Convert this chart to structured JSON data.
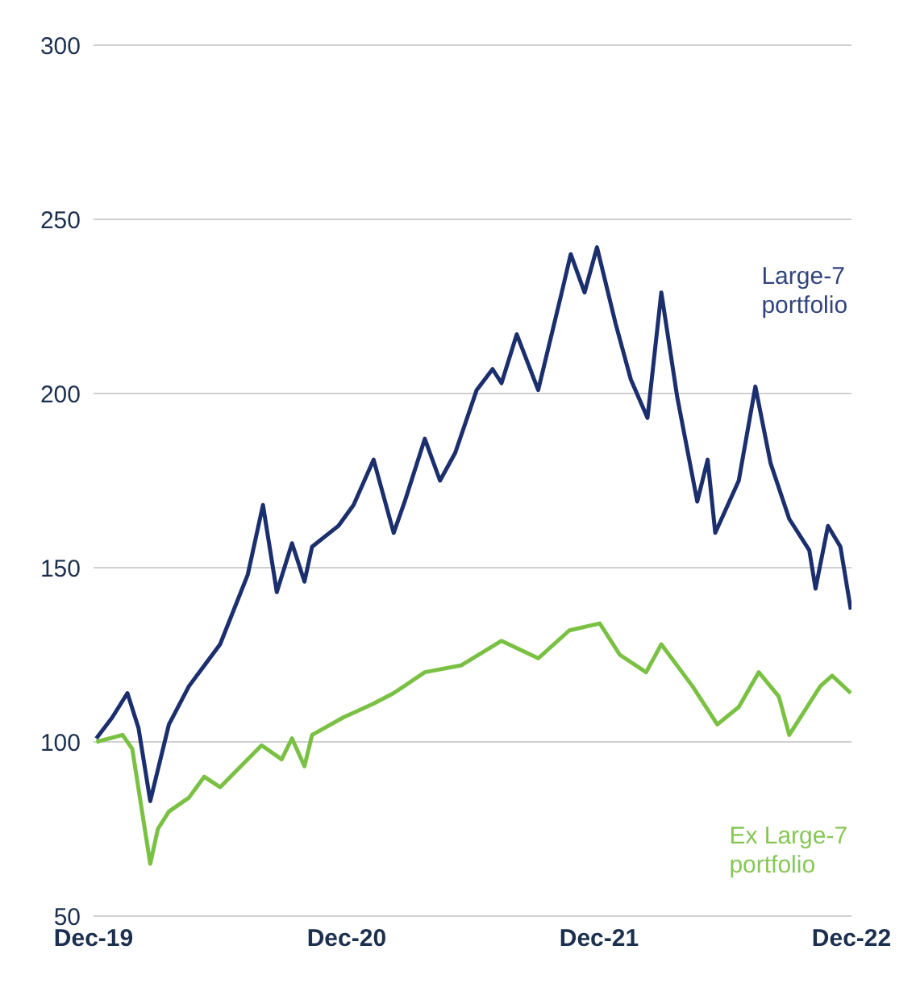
{
  "chart_data": {
    "type": "line",
    "xlim": [
      "2019-12-31",
      "2022-12-31"
    ],
    "xticks": [
      {
        "value": "2019-12-31",
        "label": "Dec-19"
      },
      {
        "value": "2020-12-31",
        "label": "Dec-20"
      },
      {
        "value": "2021-12-31",
        "label": "Dec-21"
      },
      {
        "value": "2022-12-31",
        "label": "Dec-22"
      }
    ],
    "ylim": [
      50,
      300
    ],
    "yticks": [
      50,
      100,
      150,
      200,
      250,
      300
    ],
    "grid": "y",
    "marker": "none",
    "line_style": "solid",
    "series": [
      {
        "name": "Large-7 portfolio",
        "color": "#1b2f6e",
        "x": [
          "2020-01-04",
          "2020-01-27",
          "2020-02-18",
          "2020-03-05",
          "2020-03-22",
          "2020-04-18",
          "2020-05-17",
          "2020-07-01",
          "2020-07-23",
          "2020-08-10",
          "2020-09-01",
          "2020-09-21",
          "2020-10-13",
          "2020-10-31",
          "2020-11-11",
          "2020-12-19",
          "2021-01-10",
          "2021-02-08",
          "2021-03-09",
          "2021-03-25",
          "2021-04-23",
          "2021-05-15",
          "2021-06-06",
          "2021-07-07",
          "2021-07-30",
          "2021-08-12",
          "2021-09-03",
          "2021-10-04",
          "2021-11-07",
          "2021-11-20",
          "2021-12-10",
          "2021-12-28",
          "2022-01-24",
          "2022-02-15",
          "2022-03-11",
          "2022-03-31",
          "2022-04-23",
          "2022-05-22",
          "2022-06-06",
          "2022-06-17",
          "2022-07-21",
          "2022-08-14",
          "2022-09-05",
          "2022-10-02",
          "2022-10-31",
          "2022-11-09",
          "2022-11-27",
          "2022-12-15",
          "2022-12-30"
        ],
        "values": [
          101,
          107,
          114,
          104,
          83,
          105,
          116,
          128,
          139,
          148,
          168,
          143,
          157,
          146,
          156,
          162,
          168,
          181,
          160,
          169,
          187,
          175,
          183,
          201,
          207,
          203,
          217,
          201,
          229,
          240,
          229,
          242,
          220,
          204,
          193,
          229,
          199,
          169,
          181,
          160,
          175,
          202,
          180,
          164,
          155,
          144,
          162,
          156,
          138
        ]
      },
      {
        "name": "Ex Large-7 portfolio",
        "color": "#7ac143",
        "x": [
          "2020-01-04",
          "2020-02-11",
          "2020-02-25",
          "2020-03-22",
          "2020-04-02",
          "2020-04-18",
          "2020-05-17",
          "2020-06-08",
          "2020-07-01",
          "2020-08-30",
          "2020-09-28",
          "2020-10-13",
          "2020-10-31",
          "2020-11-11",
          "2020-12-26",
          "2021-02-08",
          "2021-03-09",
          "2021-04-23",
          "2021-06-15",
          "2021-08-12",
          "2021-10-04",
          "2021-11-18",
          "2022-01-01",
          "2022-01-30",
          "2022-03-09",
          "2022-03-31",
          "2022-05-15",
          "2022-06-20",
          "2022-07-21",
          "2022-08-19",
          "2022-09-17",
          "2022-10-02",
          "2022-11-16",
          "2022-12-03",
          "2022-12-30"
        ],
        "values": [
          100,
          102,
          98,
          65,
          75,
          80,
          84,
          90,
          87,
          99,
          95,
          101,
          93,
          102,
          107,
          111,
          114,
          120,
          122,
          129,
          124,
          132,
          134,
          125,
          120,
          128,
          116,
          105,
          110,
          120,
          113,
          102,
          116,
          119,
          114
        ]
      }
    ]
  }
}
